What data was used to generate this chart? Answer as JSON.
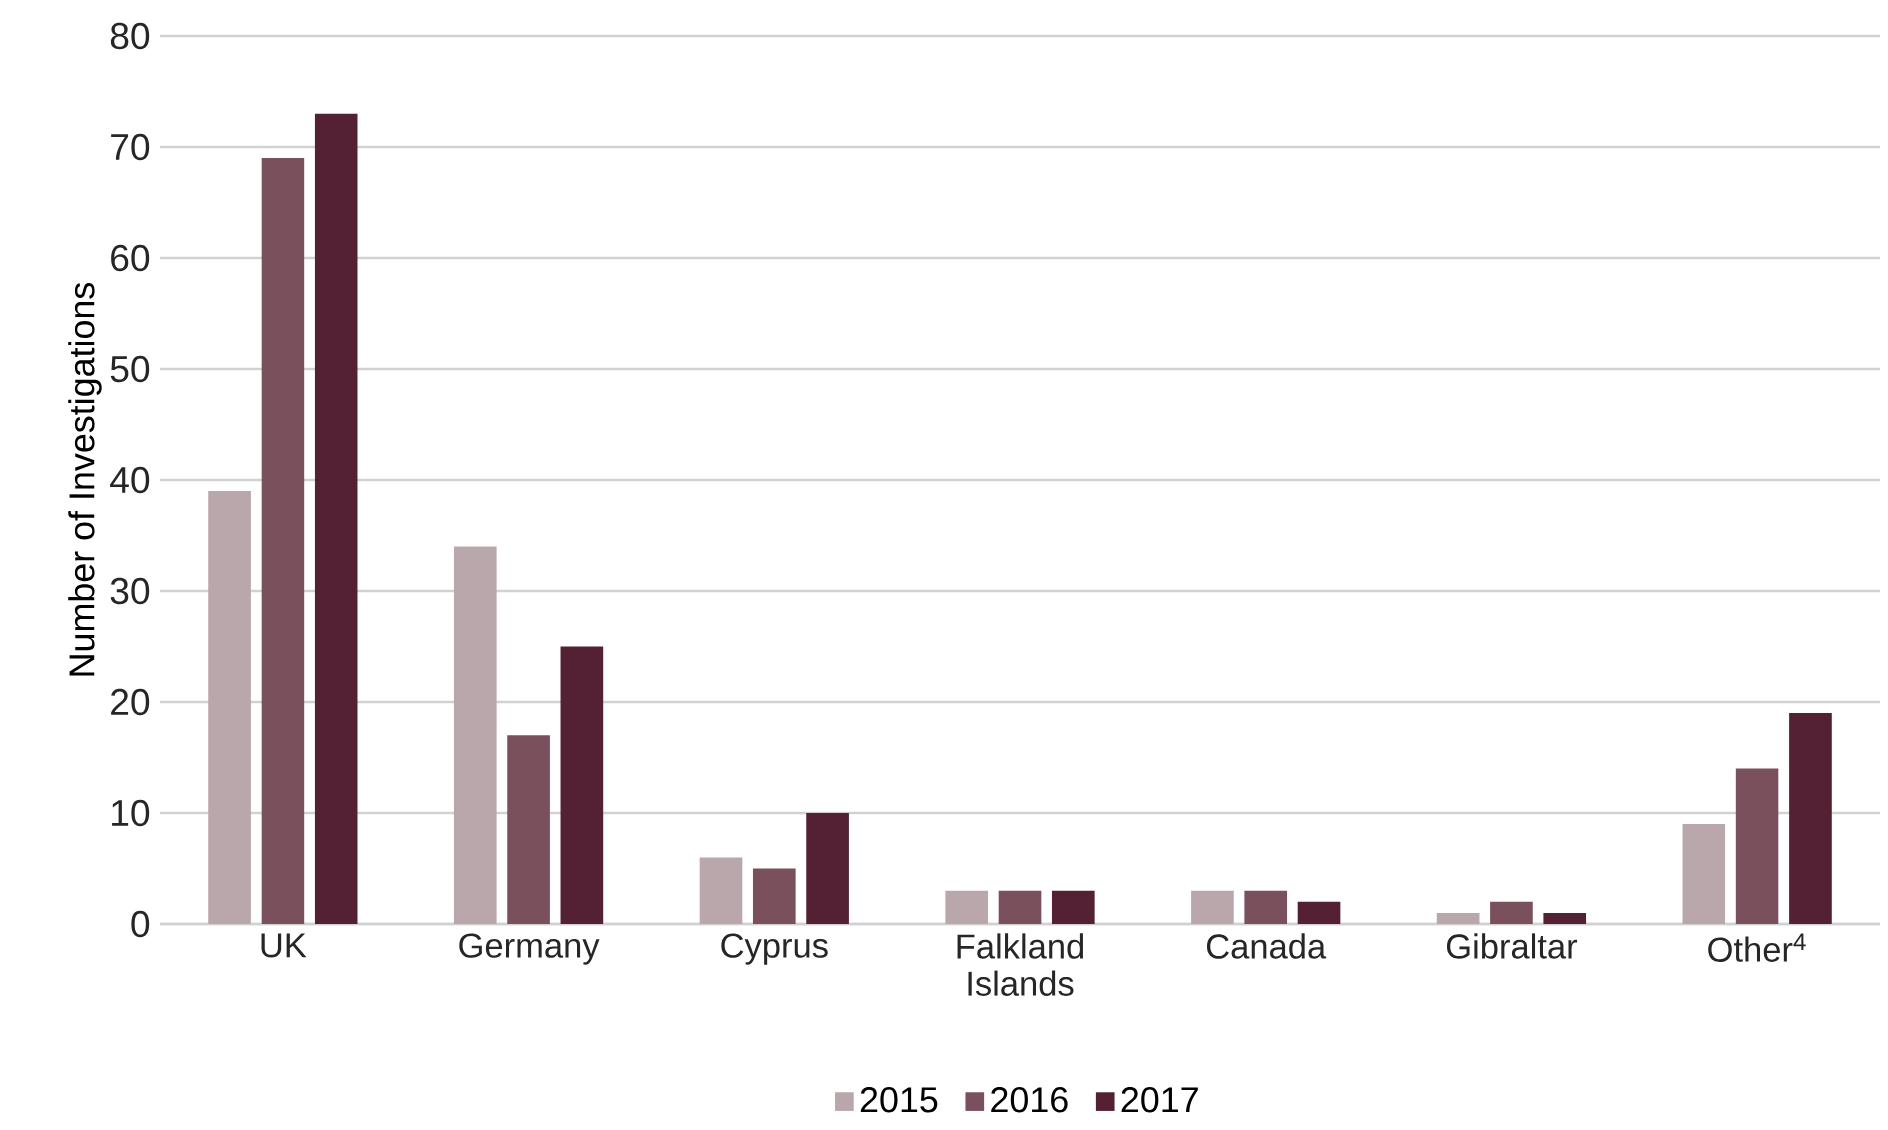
{
  "chart_data": {
    "type": "bar",
    "ylabel": "Number of Investigations",
    "categories": [
      "UK",
      "Germany",
      "Cyprus",
      "Falkland Islands",
      "Canada",
      "Gibraltar",
      "Other$^{4}$"
    ],
    "series": [
      {
        "name": "2015",
        "color": "#b9a7ab",
        "values": [
          39,
          34,
          6,
          3,
          3,
          1,
          9
        ]
      },
      {
        "name": "2016",
        "color": "#7a505c",
        "values": [
          69,
          17,
          5,
          3,
          3,
          2,
          14
        ]
      },
      {
        "name": "2017",
        "color": "#532034",
        "values": [
          73,
          25,
          10,
          3,
          2,
          1,
          19
        ]
      }
    ],
    "ylim": [
      0,
      80
    ],
    "yticks": [
      0,
      10,
      20,
      30,
      40,
      50,
      60,
      70,
      80
    ],
    "grid": "y",
    "legend": "bottom"
  }
}
